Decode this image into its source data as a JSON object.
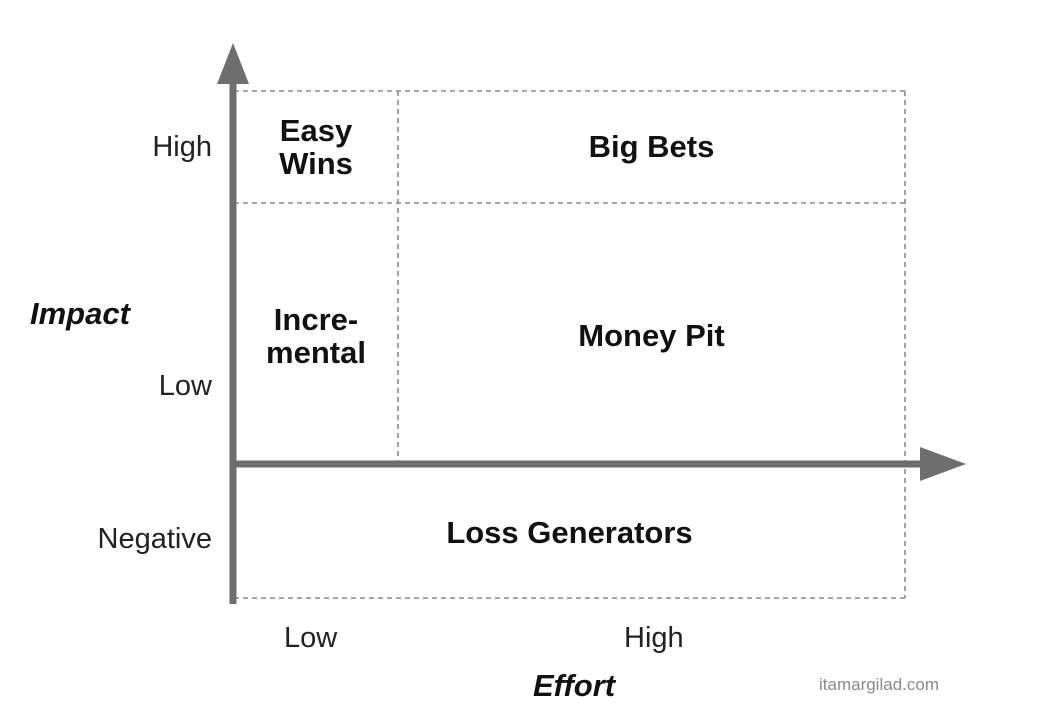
{
  "colors": {
    "axis": "#6e6e6e",
    "grid": "#8a8a8a",
    "text": "#111111",
    "watermark": "#8a8a8a"
  },
  "y_axis": {
    "title": "Impact",
    "ticks": {
      "high": "High",
      "low": "Low",
      "negative": "Negative"
    }
  },
  "x_axis": {
    "title": "Effort",
    "ticks": {
      "low": "Low",
      "high": "High"
    }
  },
  "quadrants": {
    "easy_wins": {
      "line1": "Easy",
      "line2": "Wins"
    },
    "big_bets": "Big Bets",
    "incremental": {
      "line1": "Incre-",
      "line2": "mental"
    },
    "money_pit": "Money Pit",
    "loss_generators": "Loss Generators"
  },
  "watermark": "itamargilad.com"
}
